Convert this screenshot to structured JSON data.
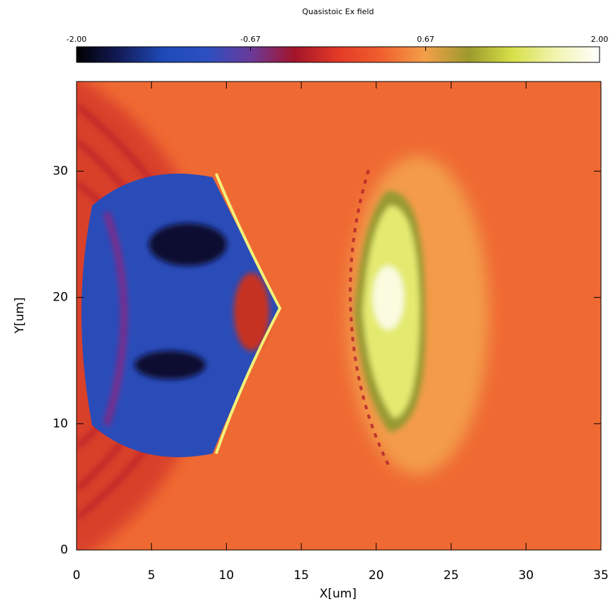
{
  "chart_data": {
    "type": "heatmap",
    "title": "Quasistoic Ex field",
    "xlabel": "X[um]",
    "ylabel": "Y[um]",
    "xlim": [
      0,
      35
    ],
    "xticks": [
      0,
      5,
      10,
      15,
      20,
      25,
      30,
      35
    ],
    "ylim": [
      0,
      37.1
    ],
    "yticks": [
      0,
      10,
      20,
      30
    ],
    "colorbar": {
      "lim": [
        -2,
        2
      ],
      "ticks": [
        {
          "value": -2,
          "label": "-2.00"
        },
        -0.67,
        0.67,
        {
          "value": 2,
          "label": "2.00"
        }
      ],
      "colormap": [
        "#000000",
        "#141c5a",
        "#1e4ab8",
        "#2c4fc0",
        "#6a3a9a",
        "#a3142a",
        "#e23a26",
        "#f0602e",
        "#f3a04a",
        "#9c9a2c",
        "#d6e048",
        "#f2f4b0",
        "#ffffff"
      ]
    }
  }
}
